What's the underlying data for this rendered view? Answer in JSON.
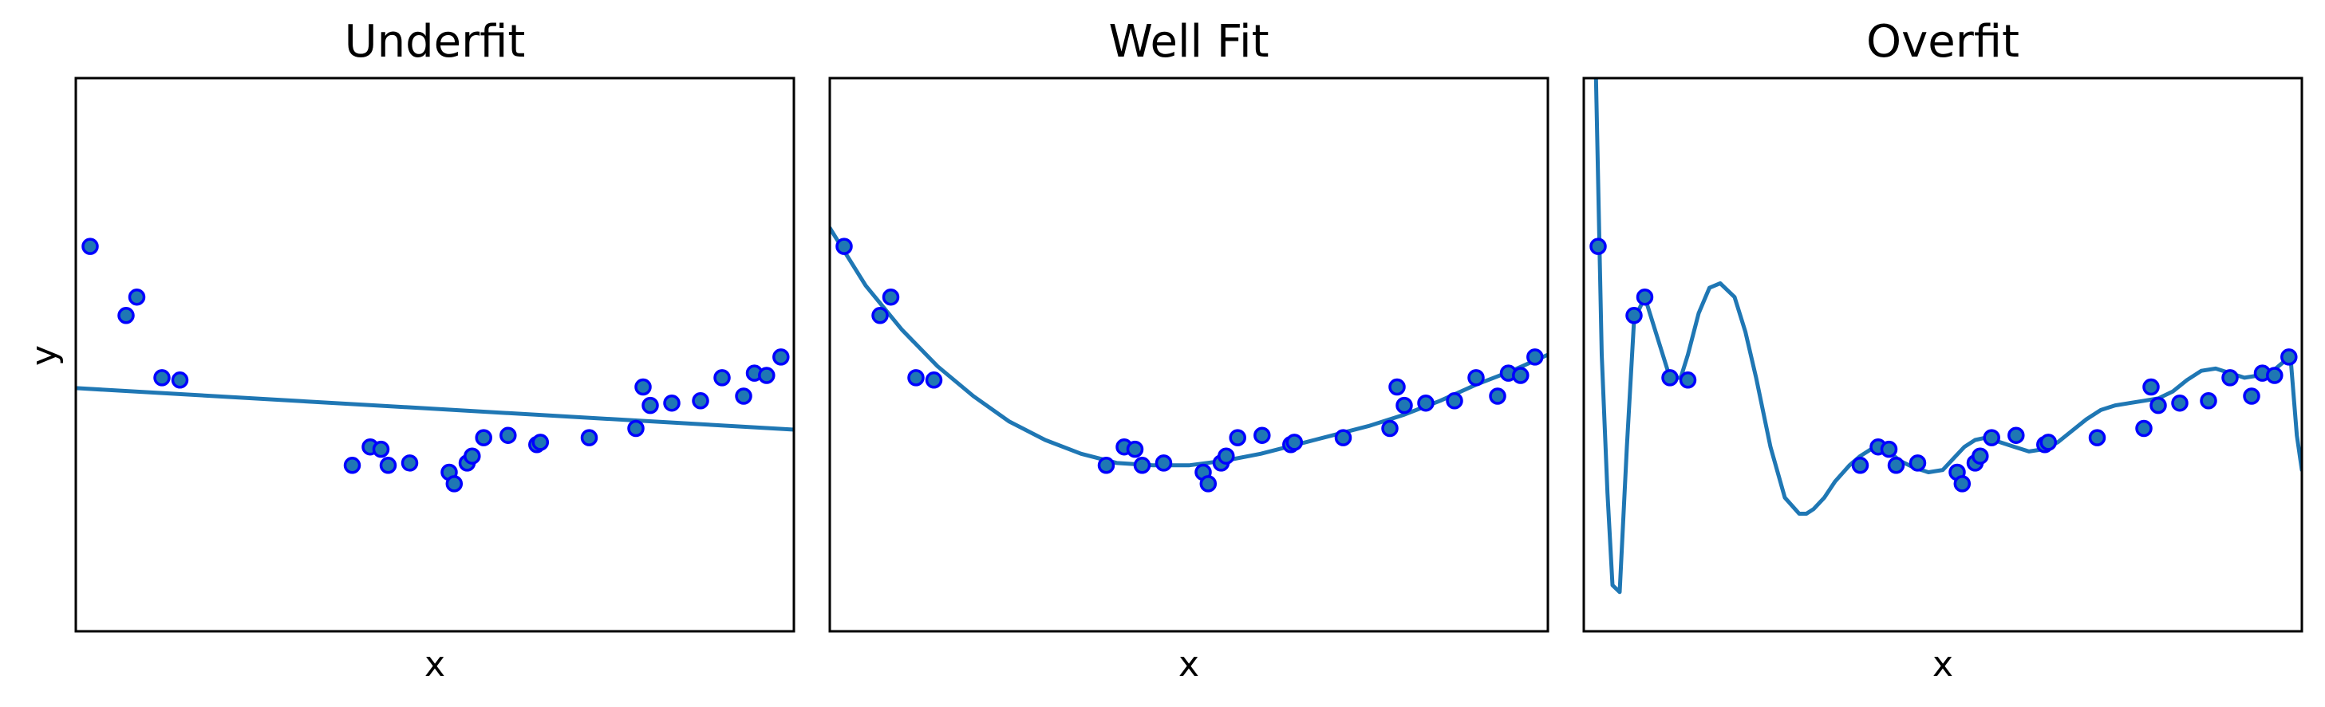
{
  "colors": {
    "line": "#1f77b4",
    "marker_face": "#1f77b4",
    "marker_edge": "#0000ff"
  },
  "chart_data": [
    {
      "type": "scatter",
      "title": "Underfit",
      "xlabel": "x",
      "ylabel": "y",
      "xlim": [
        0,
        1
      ],
      "ylim": [
        -1.2,
        1.2
      ],
      "points_x": [
        0.02,
        0.07,
        0.085,
        0.12,
        0.145,
        0.385,
        0.41,
        0.425,
        0.435,
        0.465,
        0.52,
        0.527,
        0.545,
        0.552,
        0.568,
        0.602,
        0.642,
        0.647,
        0.715,
        0.78,
        0.79,
        0.8,
        0.83,
        0.87,
        0.9,
        0.93,
        0.945,
        0.962,
        0.982
      ],
      "points_y": [
        0.47,
        0.17,
        0.25,
        -0.1,
        -0.11,
        -0.48,
        -0.4,
        -0.41,
        -0.48,
        -0.47,
        -0.51,
        -0.56,
        -0.47,
        -0.44,
        -0.36,
        -0.35,
        -0.39,
        -0.38,
        -0.36,
        -0.32,
        -0.14,
        -0.22,
        -0.21,
        -0.2,
        -0.1,
        -0.18,
        -0.08,
        -0.09,
        -0.01
      ],
      "fit": {
        "kind": "linear",
        "intercept": -0.145,
        "slope": -0.18
      }
    },
    {
      "type": "scatter",
      "title": "Well Fit",
      "xlabel": "x",
      "ylabel": "",
      "xlim": [
        0,
        1
      ],
      "ylim": [
        -1.2,
        1.2
      ],
      "points_x": [
        0.02,
        0.07,
        0.085,
        0.12,
        0.145,
        0.385,
        0.41,
        0.425,
        0.435,
        0.465,
        0.52,
        0.527,
        0.545,
        0.552,
        0.568,
        0.602,
        0.642,
        0.647,
        0.715,
        0.78,
        0.79,
        0.8,
        0.83,
        0.87,
        0.9,
        0.93,
        0.945,
        0.962,
        0.982
      ],
      "points_y": [
        0.47,
        0.17,
        0.25,
        -0.1,
        -0.11,
        -0.48,
        -0.4,
        -0.41,
        -0.48,
        -0.47,
        -0.51,
        -0.56,
        -0.47,
        -0.44,
        -0.36,
        -0.35,
        -0.39,
        -0.38,
        -0.36,
        -0.32,
        -0.14,
        -0.22,
        -0.21,
        -0.2,
        -0.1,
        -0.18,
        -0.08,
        -0.09,
        -0.01
      ],
      "fit_x": [
        0,
        0.05,
        0.1,
        0.15,
        0.2,
        0.25,
        0.3,
        0.35,
        0.4,
        0.45,
        0.5,
        0.55,
        0.6,
        0.65,
        0.7,
        0.75,
        0.8,
        0.85,
        0.9,
        0.95,
        1
      ],
      "fit_y": [
        0.55,
        0.3,
        0.11,
        -0.05,
        -0.18,
        -0.29,
        -0.37,
        -0.43,
        -0.47,
        -0.48,
        -0.48,
        -0.46,
        -0.43,
        -0.39,
        -0.35,
        -0.31,
        -0.26,
        -0.2,
        -0.13,
        -0.07,
        0.0
      ]
    },
    {
      "type": "scatter",
      "title": "Overfit",
      "xlabel": "x",
      "ylabel": "",
      "xlim": [
        0,
        1
      ],
      "ylim": [
        -1.2,
        1.2
      ],
      "points_x": [
        0.02,
        0.07,
        0.085,
        0.12,
        0.145,
        0.385,
        0.41,
        0.425,
        0.435,
        0.465,
        0.52,
        0.527,
        0.545,
        0.552,
        0.568,
        0.602,
        0.642,
        0.647,
        0.715,
        0.78,
        0.79,
        0.8,
        0.83,
        0.87,
        0.9,
        0.93,
        0.945,
        0.962,
        0.982
      ],
      "points_y": [
        0.47,
        0.17,
        0.25,
        -0.1,
        -0.11,
        -0.48,
        -0.4,
        -0.41,
        -0.48,
        -0.47,
        -0.51,
        -0.56,
        -0.47,
        -0.44,
        -0.36,
        -0.35,
        -0.39,
        -0.38,
        -0.36,
        -0.32,
        -0.14,
        -0.22,
        -0.21,
        -0.2,
        -0.1,
        -0.18,
        -0.08,
        -0.09,
        -0.01
      ],
      "fit_x": [
        0.015,
        0.025,
        0.033,
        0.04,
        0.05,
        0.06,
        0.07,
        0.085,
        0.1,
        0.12,
        0.135,
        0.145,
        0.16,
        0.175,
        0.19,
        0.21,
        0.225,
        0.24,
        0.26,
        0.28,
        0.3,
        0.31,
        0.32,
        0.335,
        0.35,
        0.37,
        0.385,
        0.4,
        0.41,
        0.425,
        0.44,
        0.46,
        0.48,
        0.5,
        0.515,
        0.53,
        0.545,
        0.56,
        0.58,
        0.6,
        0.62,
        0.64,
        0.66,
        0.68,
        0.7,
        0.72,
        0.74,
        0.76,
        0.78,
        0.8,
        0.82,
        0.84,
        0.86,
        0.88,
        0.9,
        0.92,
        0.94,
        0.96,
        0.975,
        0.985,
        0.993,
        1.0
      ],
      "fit_y": [
        1.5,
        0.0,
        -0.6,
        -1.0,
        -1.03,
        -0.4,
        0.15,
        0.25,
        0.1,
        -0.1,
        -0.1,
        0.0,
        0.18,
        0.29,
        0.31,
        0.25,
        0.1,
        -0.1,
        -0.4,
        -0.62,
        -0.69,
        -0.69,
        -0.67,
        -0.62,
        -0.55,
        -0.48,
        -0.44,
        -0.41,
        -0.4,
        -0.42,
        -0.46,
        -0.49,
        -0.51,
        -0.5,
        -0.45,
        -0.4,
        -0.37,
        -0.36,
        -0.38,
        -0.4,
        -0.42,
        -0.41,
        -0.38,
        -0.33,
        -0.28,
        -0.24,
        -0.22,
        -0.21,
        -0.2,
        -0.19,
        -0.16,
        -0.11,
        -0.07,
        -0.06,
        -0.08,
        -0.1,
        -0.09,
        -0.07,
        -0.03,
        -0.04,
        -0.35,
        -0.5
      ]
    }
  ]
}
